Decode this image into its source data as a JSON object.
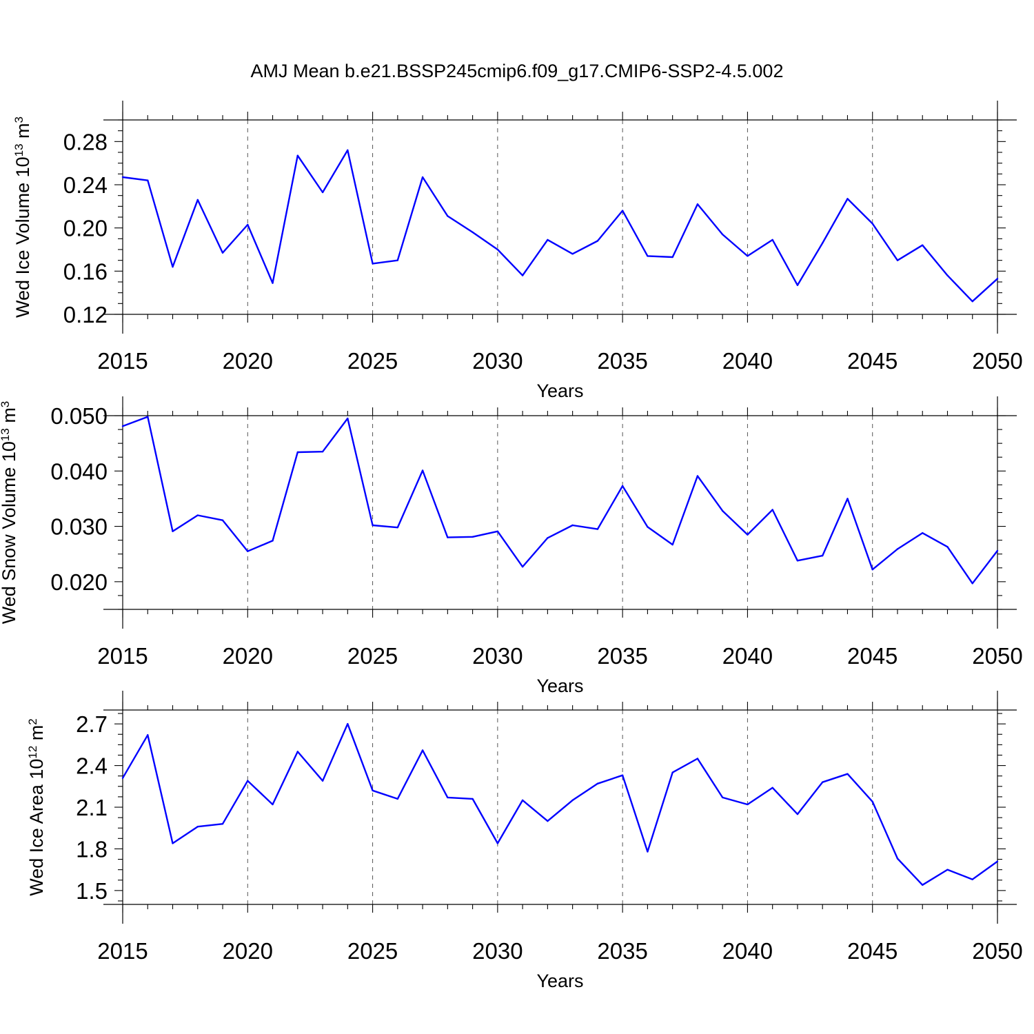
{
  "title": "AMJ Mean b.e21.BSSP245cmip6.f09_g17.CMIP6-SSP2-4.5.002",
  "colors": {
    "line": "#0000ff",
    "axes": "#000000",
    "grid": "#555555"
  },
  "chart_data": [
    {
      "type": "line",
      "ylabel": "Wed Ice Volume 10",
      "ylabel_exp": "13",
      "ylabel_unit": "m",
      "ylabel_unit_exp": "3",
      "xlabel": "Years",
      "xlim": [
        2015,
        2050
      ],
      "ylim": [
        0.12,
        0.3
      ],
      "xticks": [
        2015,
        2020,
        2025,
        2030,
        2035,
        2040,
        2045,
        2050
      ],
      "yticks": [
        0.12,
        0.16,
        0.2,
        0.24,
        0.28
      ],
      "ytick_labels": [
        "0.12",
        "0.16",
        "0.20",
        "0.24",
        "0.28"
      ],
      "grid": "vertical dashed at major x ticks",
      "x": [
        2015,
        2016,
        2017,
        2018,
        2019,
        2020,
        2021,
        2022,
        2023,
        2024,
        2025,
        2026,
        2027,
        2028,
        2029,
        2030,
        2031,
        2032,
        2033,
        2034,
        2035,
        2036,
        2037,
        2038,
        2039,
        2040,
        2041,
        2042,
        2043,
        2044,
        2045,
        2046,
        2047,
        2048,
        2049,
        2050
      ],
      "values": [
        0.247,
        0.244,
        0.164,
        0.226,
        0.177,
        0.203,
        0.149,
        0.267,
        0.233,
        0.272,
        0.167,
        0.17,
        0.247,
        0.211,
        0.196,
        0.18,
        0.156,
        0.189,
        0.176,
        0.188,
        0.216,
        0.174,
        0.173,
        0.222,
        0.194,
        0.174,
        0.189,
        0.147,
        0.186,
        0.227,
        0.204,
        0.17,
        0.184,
        0.156,
        0.132,
        0.153
      ]
    },
    {
      "type": "line",
      "ylabel": "Wed Snow Volume 10",
      "ylabel_exp": "13",
      "ylabel_unit": "m",
      "ylabel_unit_exp": "3",
      "xlabel": "Years",
      "xlim": [
        2015,
        2050
      ],
      "ylim": [
        0.015,
        0.05
      ],
      "xticks": [
        2015,
        2020,
        2025,
        2030,
        2035,
        2040,
        2045,
        2050
      ],
      "yticks": [
        0.02,
        0.03,
        0.04,
        0.05
      ],
      "ytick_labels": [
        "0.020",
        "0.030",
        "0.040",
        "0.050"
      ],
      "grid": "vertical dashed at major x ticks",
      "x": [
        2015,
        2016,
        2017,
        2018,
        2019,
        2020,
        2021,
        2022,
        2023,
        2024,
        2025,
        2026,
        2027,
        2028,
        2029,
        2030,
        2031,
        2032,
        2033,
        2034,
        2035,
        2036,
        2037,
        2038,
        2039,
        2040,
        2041,
        2042,
        2043,
        2044,
        2045,
        2046,
        2047,
        2048,
        2049,
        2050
      ],
      "values": [
        0.0481,
        0.0498,
        0.0291,
        0.032,
        0.0311,
        0.0255,
        0.0274,
        0.0434,
        0.0435,
        0.0495,
        0.0302,
        0.0298,
        0.0401,
        0.028,
        0.0281,
        0.0291,
        0.0227,
        0.0279,
        0.0302,
        0.0295,
        0.0373,
        0.0299,
        0.0267,
        0.0391,
        0.0328,
        0.0285,
        0.033,
        0.0238,
        0.0247,
        0.035,
        0.0222,
        0.0259,
        0.0288,
        0.0263,
        0.0197,
        0.0256
      ]
    },
    {
      "type": "line",
      "ylabel": "Wed Ice Area 10",
      "ylabel_exp": "12",
      "ylabel_unit": "m",
      "ylabel_unit_exp": "2",
      "xlabel": "Years",
      "xlim": [
        2015,
        2050
      ],
      "ylim": [
        1.4,
        2.8
      ],
      "xticks": [
        2015,
        2020,
        2025,
        2030,
        2035,
        2040,
        2045,
        2050
      ],
      "yticks": [
        1.5,
        1.8,
        2.1,
        2.4,
        2.7
      ],
      "ytick_labels": [
        "1.5",
        "1.8",
        "2.1",
        "2.4",
        "2.7"
      ],
      "grid": "vertical dashed at major x ticks",
      "x": [
        2015,
        2016,
        2017,
        2018,
        2019,
        2020,
        2021,
        2022,
        2023,
        2024,
        2025,
        2026,
        2027,
        2028,
        2029,
        2030,
        2031,
        2032,
        2033,
        2034,
        2035,
        2036,
        2037,
        2038,
        2039,
        2040,
        2041,
        2042,
        2043,
        2044,
        2045,
        2046,
        2047,
        2048,
        2049,
        2050
      ],
      "values": [
        2.31,
        2.62,
        1.84,
        1.96,
        1.98,
        2.29,
        2.12,
        2.5,
        2.29,
        2.7,
        2.22,
        2.16,
        2.51,
        2.17,
        2.16,
        1.84,
        2.15,
        2.0,
        2.15,
        2.27,
        2.33,
        1.78,
        2.35,
        2.45,
        2.17,
        2.12,
        2.24,
        2.05,
        2.28,
        2.34,
        2.14,
        1.73,
        1.54,
        1.65,
        1.58,
        1.71
      ]
    }
  ]
}
